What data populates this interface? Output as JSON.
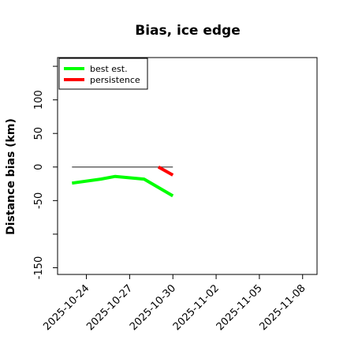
{
  "chart_data": {
    "type": "line",
    "title": "Bias, ice edge",
    "xlabel": "",
    "ylabel": "Distance bias (km)",
    "x_ticks": [
      "2025-10-24",
      "2025-10-27",
      "2025-10-30",
      "2025-11-02",
      "2025-11-05",
      "2025-11-08"
    ],
    "xlim": [
      "2025-10-22",
      "2025-11-09"
    ],
    "y_ticks": [
      -150,
      -100,
      -50,
      0,
      50,
      100,
      150
    ],
    "y_tick_labels": [
      "-150",
      "",
      "-50",
      "0",
      "50",
      "100",
      ""
    ],
    "ylim": [
      -160,
      163
    ],
    "grid": false,
    "legend_position": "top-left",
    "reference_line": {
      "x": [
        "2025-10-23",
        "2025-10-30"
      ],
      "y": [
        0,
        0
      ],
      "color": "#666666"
    },
    "series": [
      {
        "name": "best est.",
        "color": "#00ff00",
        "x": [
          "2025-10-23",
          "2025-10-25",
          "2025-10-26",
          "2025-10-28",
          "2025-10-30"
        ],
        "y": [
          -24,
          -18,
          -14,
          -18,
          -43
        ]
      },
      {
        "name": "persistence",
        "color": "#ff0000",
        "x": [
          "2025-10-29",
          "2025-10-30"
        ],
        "y": [
          0,
          -12
        ]
      }
    ]
  }
}
